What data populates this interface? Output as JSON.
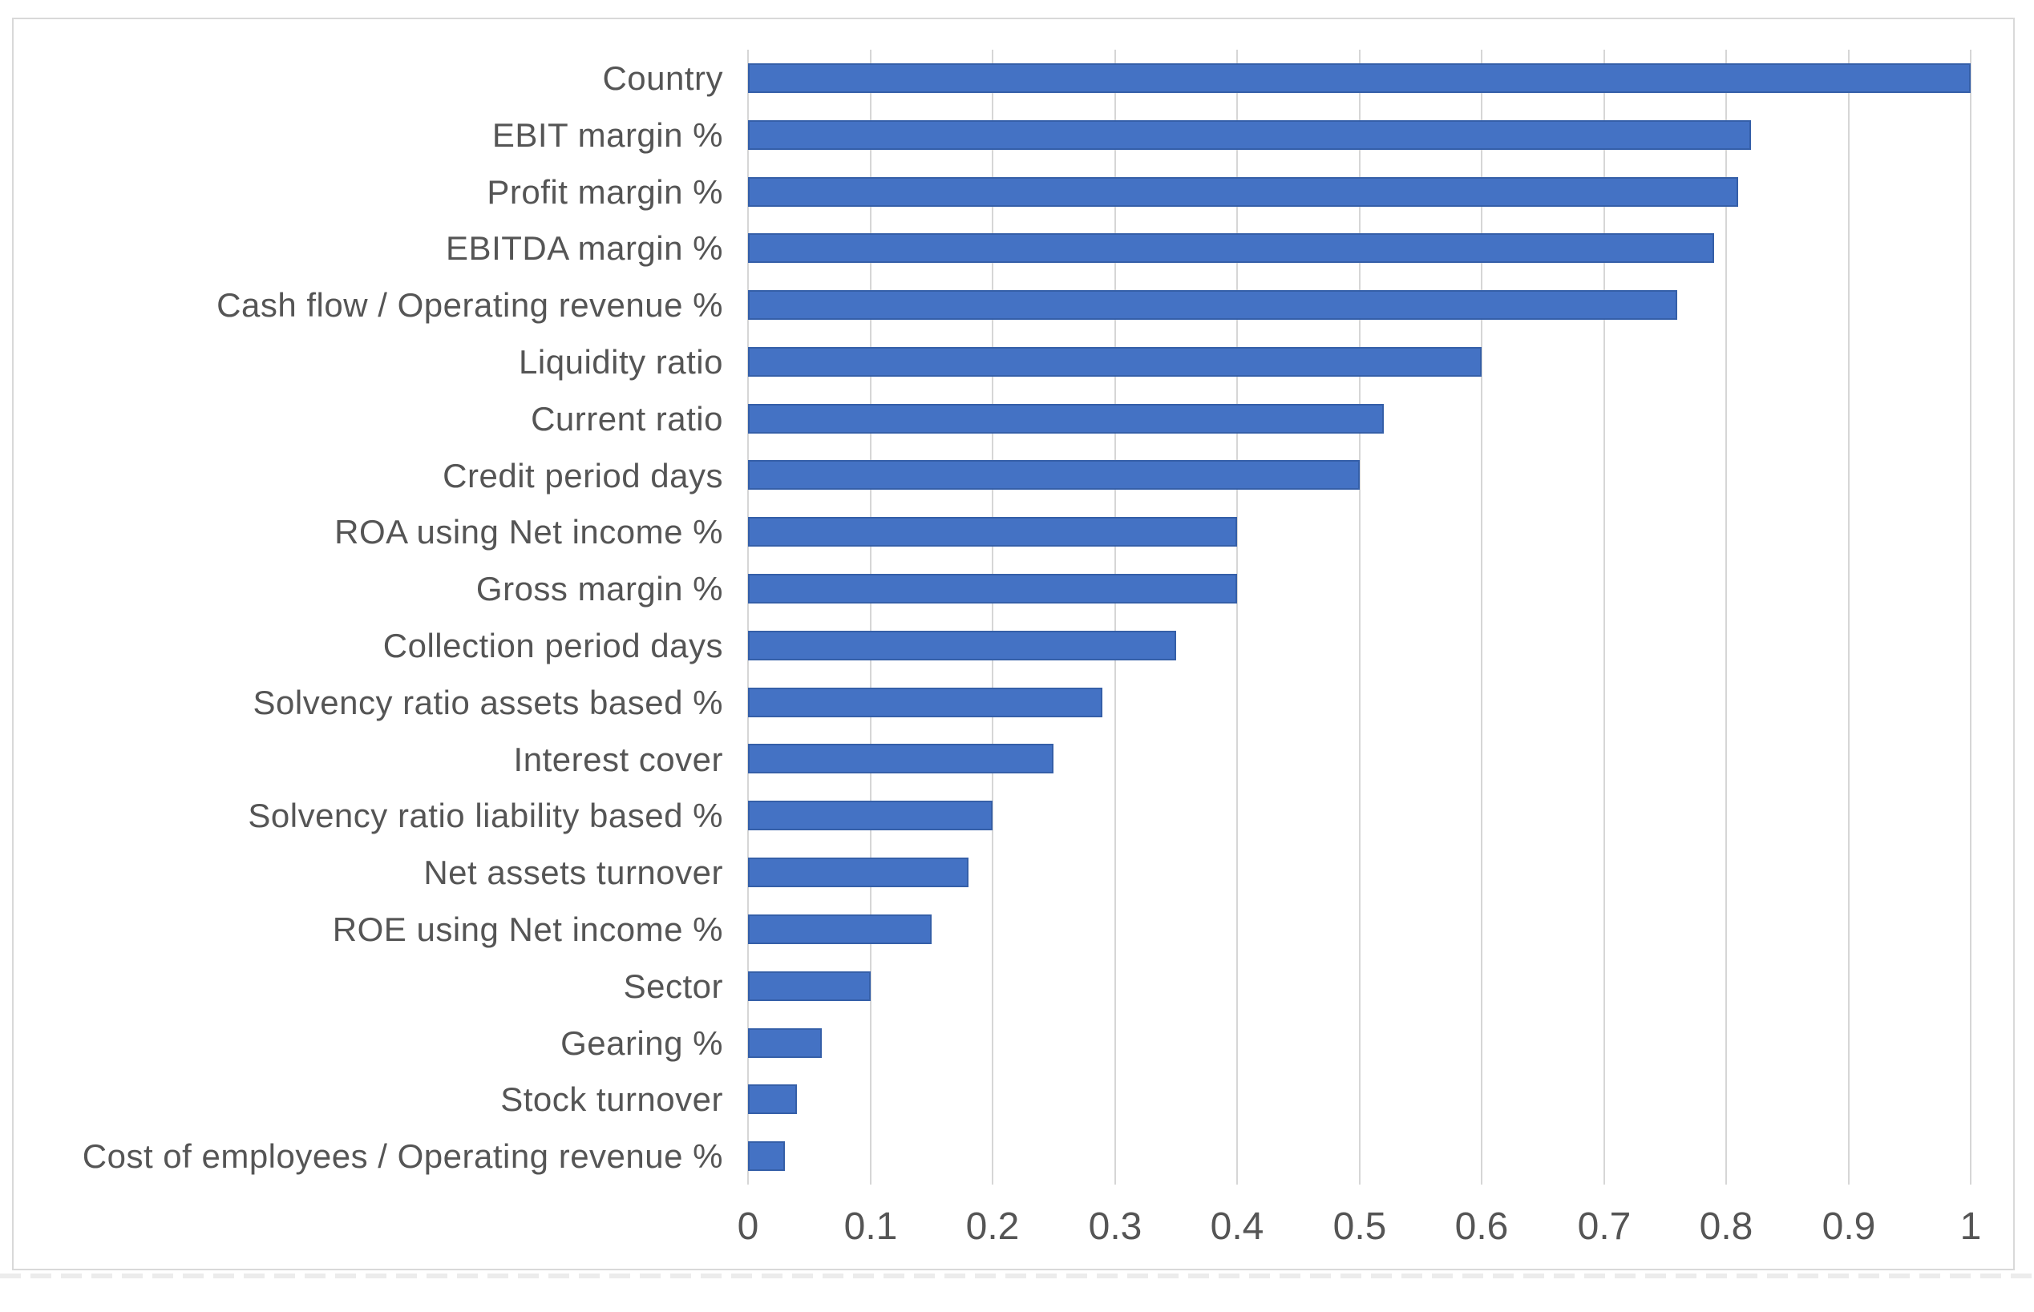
{
  "chart_data": {
    "type": "bar",
    "orientation": "horizontal",
    "title": "",
    "xlabel": "",
    "ylabel": "",
    "categories": [
      "Country",
      "EBIT margin %",
      "Profit margin %",
      "EBITDA margin %",
      "Cash flow / Operating revenue %",
      "Liquidity ratio",
      "Current ratio",
      "Credit period days",
      "ROA using Net income %",
      "Gross margin %",
      "Collection period days",
      "Solvency ratio assets based %",
      "Interest cover",
      "Solvency ratio liability based %",
      "Net assets turnover",
      "ROE using Net income %",
      "Sector",
      "Gearing %",
      "Stock turnover",
      "Cost of employees / Operating revenue %"
    ],
    "values": [
      1.0,
      0.82,
      0.81,
      0.79,
      0.76,
      0.6,
      0.52,
      0.5,
      0.4,
      0.4,
      0.35,
      0.29,
      0.25,
      0.2,
      0.18,
      0.15,
      0.1,
      0.06,
      0.04,
      0.03
    ],
    "xlim": [
      0,
      1
    ],
    "xticks": [
      0,
      0.1,
      0.2,
      0.3,
      0.4,
      0.5,
      0.6,
      0.7,
      0.8,
      0.9,
      1
    ],
    "xtick_labels": [
      "0",
      "0.1",
      "0.2",
      "0.3",
      "0.4",
      "0.5",
      "0.6",
      "0.7",
      "0.8",
      "0.9",
      "1"
    ],
    "grid": true,
    "legend": false,
    "colors": {
      "bar_fill": "#4472c4",
      "bar_border": "#355fa8",
      "gridline": "#d6d6d6",
      "axis_text": "#555555",
      "frame_border": "#d9d9d9",
      "background": "#ffffff"
    }
  }
}
